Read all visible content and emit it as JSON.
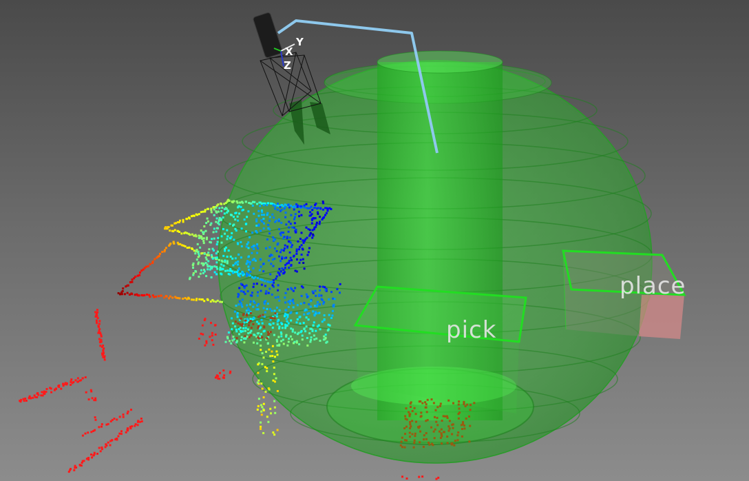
{
  "scene": {
    "regions": {
      "pick_label": "pick",
      "place_label": "place"
    },
    "frame_axes": {
      "x_label": "X",
      "y_label": "Y",
      "z_label": "Z"
    },
    "colors": {
      "workspace_sphere": "#2fc42f",
      "region_outline": "#22dd22",
      "place_region_fill": "#d98a8a",
      "trajectory": "#8ec8ec",
      "gripper": "#1c1c1c",
      "obstacle_points": "#ff1a1a",
      "label_text": "#e6e6e6"
    }
  }
}
